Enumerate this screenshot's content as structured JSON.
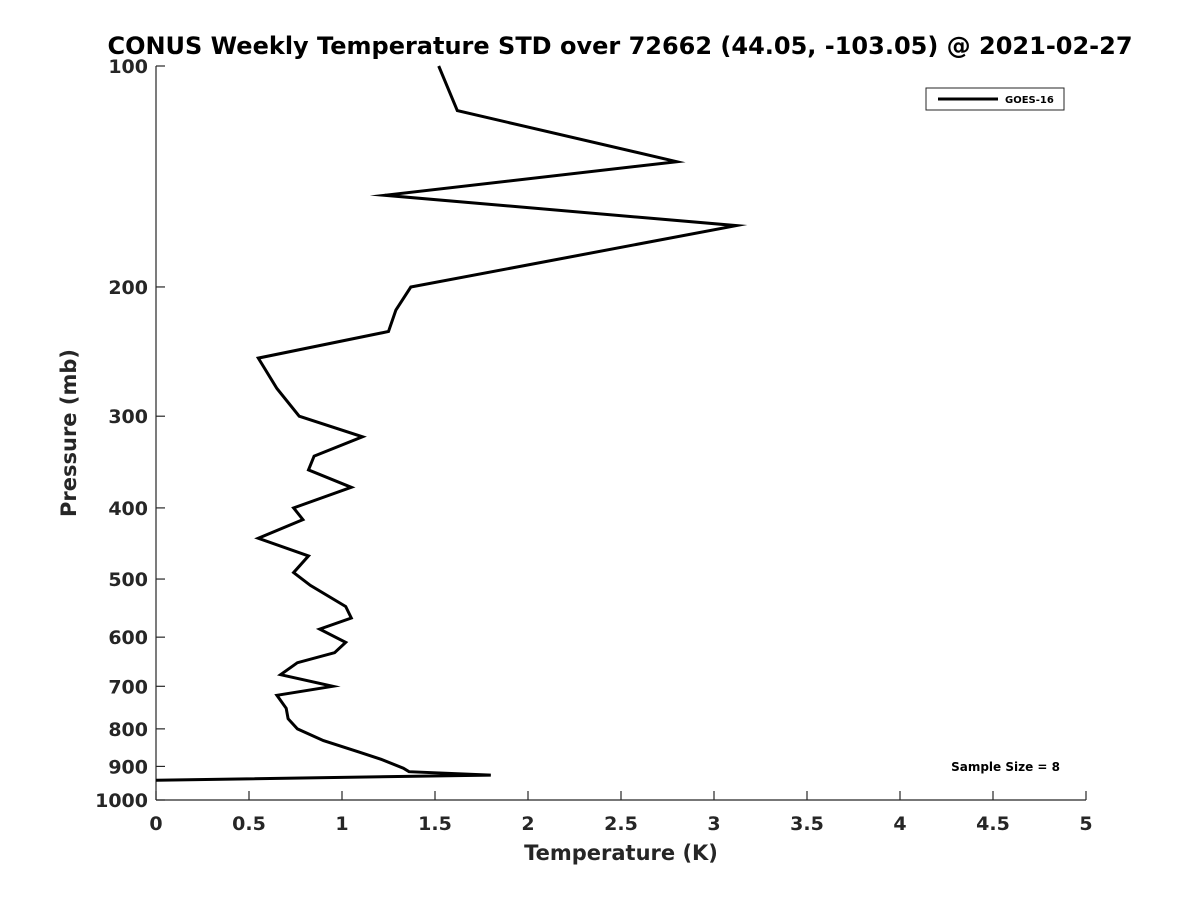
{
  "chart_data": {
    "type": "line",
    "title": "CONUS Weekly Temperature STD over 72662 (44.05, -103.05) @ 2021-02-27",
    "xlabel": "Temperature (K)",
    "ylabel": "Pressure (mb)",
    "xlim": [
      0,
      5
    ],
    "ylim": [
      100,
      1000
    ],
    "yscale": "log",
    "y_reversed": true,
    "x_ticks": [
      "0",
      "0.5",
      "1",
      "1.5",
      "2",
      "2.5",
      "3",
      "3.5",
      "4",
      "4.5",
      "5"
    ],
    "y_ticks": [
      "100",
      "200",
      "300",
      "400",
      "500",
      "600",
      "700",
      "800",
      "900",
      "1000"
    ],
    "grid": false,
    "legend_position": "top-right",
    "annotation": "Sample Size = 8",
    "series": [
      {
        "name": "GOES-16",
        "color": "#000000",
        "x": [
          1.52,
          1.62,
          2.8,
          1.23,
          3.12,
          1.37,
          1.29,
          1.25,
          0.55,
          0.65,
          0.77,
          1.11,
          0.85,
          0.82,
          1.05,
          0.74,
          0.79,
          0.55,
          0.82,
          0.74,
          0.83,
          1.02,
          1.05,
          0.88,
          1.02,
          0.96,
          0.76,
          0.67,
          0.95,
          0.65,
          0.7,
          0.71,
          0.76,
          0.9,
          1.09,
          1.21,
          1.33,
          1.36,
          1.8,
          0
        ],
        "y": [
          100,
          115,
          135,
          150,
          165,
          200,
          215,
          230,
          250,
          275,
          300,
          320,
          340,
          355,
          375,
          400,
          415,
          440,
          465,
          490,
          510,
          545,
          565,
          585,
          610,
          630,
          650,
          675,
          700,
          720,
          750,
          775,
          800,
          830,
          860,
          880,
          905,
          915,
          925,
          940
        ]
      }
    ]
  }
}
